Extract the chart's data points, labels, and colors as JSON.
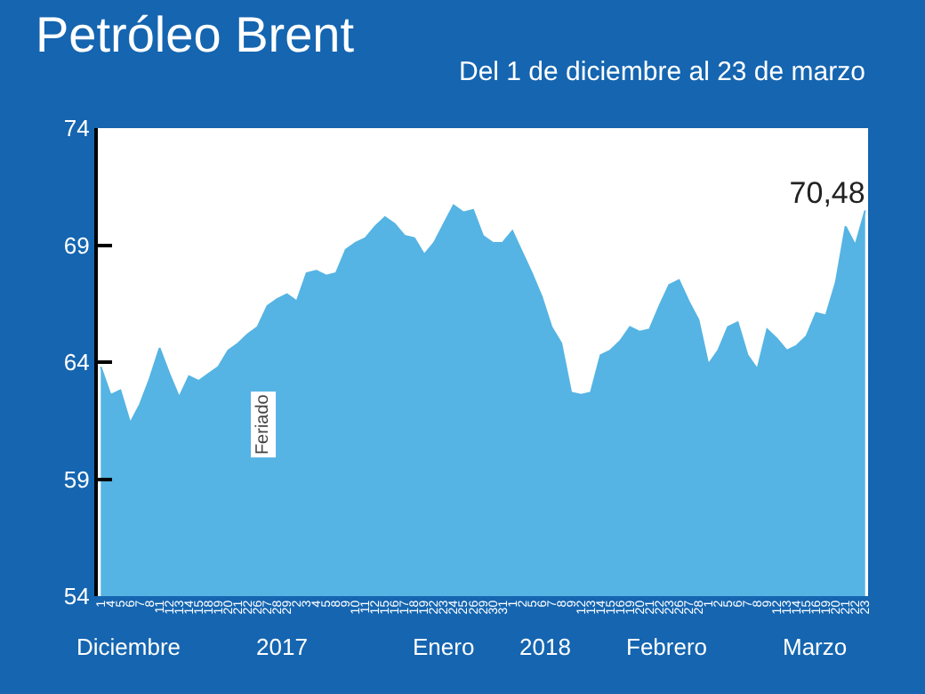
{
  "chart_data": {
    "type": "area",
    "title": "Petróleo Brent",
    "subtitle": "Del 1 de diciembre al 23 de marzo",
    "categories": [
      "1",
      "4",
      "5",
      "6",
      "7",
      "8",
      "11",
      "12",
      "13",
      "14",
      "15",
      "18",
      "19",
      "20",
      "21",
      "22",
      "26",
      "27",
      "28",
      "29",
      "2",
      "3",
      "4",
      "5",
      "8",
      "9",
      "10",
      "11",
      "12",
      "15",
      "16",
      "17",
      "18",
      "19",
      "22",
      "23",
      "24",
      "25",
      "26",
      "29",
      "30",
      "31",
      "1",
      "2",
      "5",
      "6",
      "7",
      "8",
      "9",
      "12",
      "13",
      "14",
      "15",
      "16",
      "19",
      "20",
      "21",
      "22",
      "23",
      "26",
      "27",
      "28",
      "1",
      "2",
      "5",
      "6",
      "7",
      "8",
      "9",
      "12",
      "13",
      "14",
      "15",
      "16",
      "19",
      "20",
      "21",
      "22",
      "23"
    ],
    "series": [
      {
        "color": "#55b4e3",
        "values": [
          63.8,
          62.6,
          62.8,
          61.4,
          62.2,
          63.3,
          64.6,
          63.5,
          62.5,
          63.4,
          63.2,
          63.5,
          63.8,
          64.5,
          64.8,
          65.2,
          65.5,
          66.4,
          66.7,
          66.9,
          66.6,
          67.8,
          67.9,
          67.7,
          67.8,
          68.8,
          69.1,
          69.3,
          69.8,
          70.2,
          69.9,
          69.4,
          69.3,
          68.6,
          69.1,
          69.9,
          70.7,
          70.4,
          70.5,
          69.4,
          69.1,
          69.1,
          69.6,
          68.7,
          67.8,
          66.8,
          65.5,
          64.8,
          62.7,
          62.6,
          62.7,
          64.3,
          64.5,
          64.9,
          65.5,
          65.3,
          65.4,
          66.4,
          67.3,
          67.5,
          66.6,
          65.8,
          63.9,
          64.5,
          65.5,
          65.7,
          64.3,
          63.7,
          65.4,
          65.0,
          64.5,
          64.7,
          65.1,
          66.1,
          66.0,
          67.4,
          69.8,
          69.0,
          70.48
        ],
        "value_labels": [
          null,
          null,
          null,
          null,
          null,
          null,
          null,
          null,
          null,
          null,
          null,
          null,
          null,
          null,
          null,
          null,
          null,
          null,
          null,
          null,
          null,
          null,
          null,
          null,
          null,
          null,
          null,
          null,
          null,
          null,
          null,
          null,
          null,
          null,
          null,
          null,
          null,
          null,
          null,
          null,
          null,
          null,
          null,
          null,
          null,
          null,
          null,
          null,
          null,
          null,
          null,
          null,
          null,
          null,
          null,
          null,
          null,
          null,
          null,
          null,
          null,
          null,
          null,
          null,
          null,
          null,
          null,
          null,
          null,
          null,
          null,
          null,
          null,
          null,
          null,
          null,
          null,
          null,
          "70,48"
        ]
      }
    ],
    "ylim": [
      54,
      74
    ],
    "yticks": [
      54,
      59,
      64,
      69,
      74
    ],
    "annotations": [
      "Feriado",
      "Diciembre",
      "2017",
      "Enero",
      "2018",
      "Febrero",
      "Marzo"
    ]
  }
}
